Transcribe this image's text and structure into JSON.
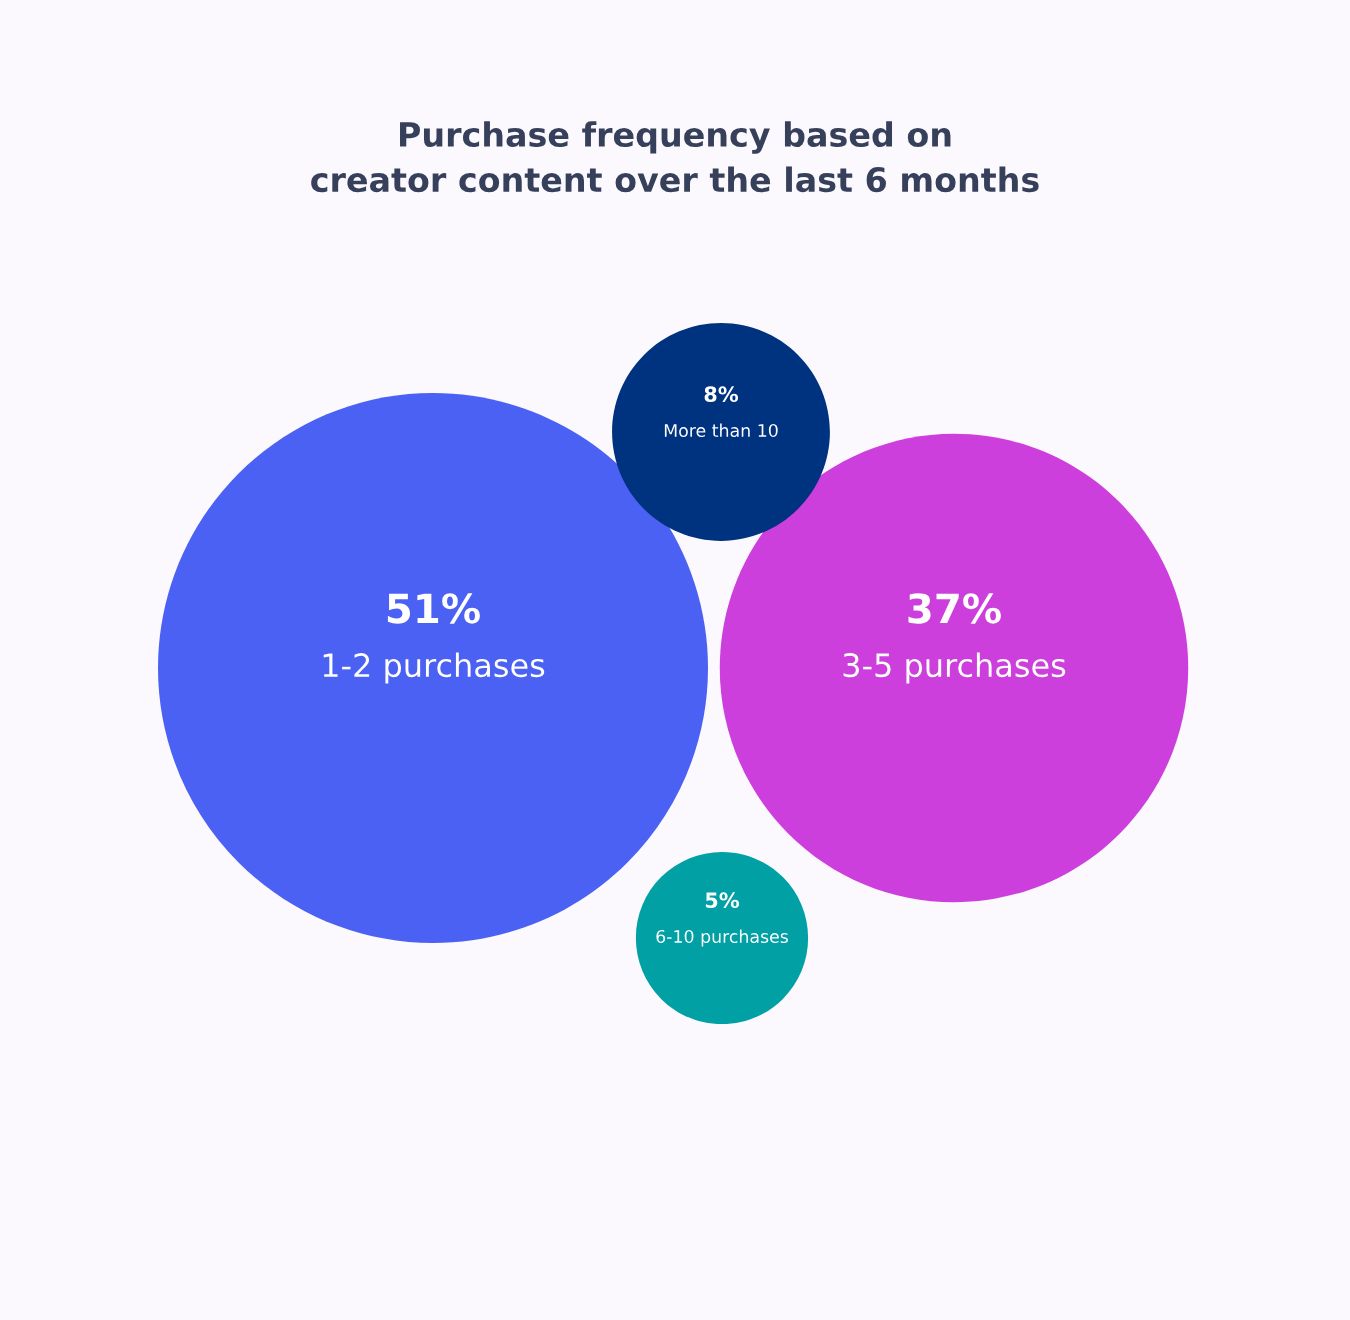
{
  "chart_data": {
    "type": "other",
    "title": "Purchase frequency based on\ncreator content over the last 6 months",
    "categories": [
      "1-2 purchases",
      "3-5 purchases",
      "More than 10",
      "6-10 purchases"
    ],
    "values": [
      51,
      37,
      8,
      5
    ],
    "value_labels": [
      "51%",
      "37%",
      "8%",
      "5%"
    ],
    "colors": [
      "#4b61f3",
      "#cd3fdc",
      "#00337f",
      "#00a0a4"
    ]
  }
}
